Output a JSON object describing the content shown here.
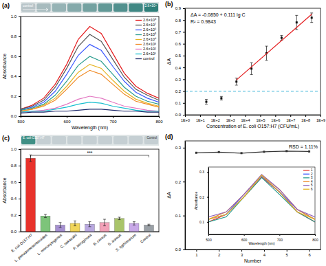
{
  "chart_data": [
    {
      "type": "line",
      "title": "(a)",
      "x_label": "Wavelength (nm)",
      "y_label": "Absorbance",
      "annotations": [
        "control",
        "2.6×10⁸"
      ],
      "x": [
        500,
        525,
        550,
        575,
        600,
        625,
        650,
        675,
        700,
        725,
        750,
        775,
        800
      ],
      "xlim": [
        500,
        800
      ],
      "xticks": [
        500,
        600,
        700,
        800
      ],
      "ylim": [
        0,
        1
      ],
      "yticks": [
        {
          "value": 0,
          "label": "0.0"
        },
        0.2,
        0.4,
        0.6,
        0.8,
        {
          "value": 1,
          "label": "1.0"
        }
      ],
      "legend": "upper right",
      "series": [
        {
          "name": "2.6×10⁸",
          "color": "#e41a1c",
          "values": [
            0.07,
            0.11,
            0.18,
            0.32,
            0.52,
            0.77,
            0.9,
            0.83,
            0.63,
            0.43,
            0.3,
            0.23,
            0.18
          ]
        },
        {
          "name": "2.6×10⁷",
          "color": "#555555",
          "values": [
            0.07,
            0.1,
            0.16,
            0.29,
            0.48,
            0.7,
            0.82,
            0.75,
            0.57,
            0.39,
            0.27,
            0.21,
            0.16
          ]
        },
        {
          "name": "2.6×10⁶",
          "color": "#3d5afe",
          "values": [
            0.06,
            0.09,
            0.14,
            0.25,
            0.42,
            0.61,
            0.72,
            0.66,
            0.5,
            0.35,
            0.24,
            0.18,
            0.14
          ]
        },
        {
          "name": "2.6×10⁵",
          "color": "#2a9d8f",
          "values": [
            0.06,
            0.08,
            0.12,
            0.21,
            0.35,
            0.51,
            0.6,
            0.55,
            0.42,
            0.29,
            0.2,
            0.15,
            0.12
          ]
        },
        {
          "name": "2.6×10⁴",
          "color": "#e6b422",
          "values": [
            0.05,
            0.07,
            0.11,
            0.18,
            0.3,
            0.44,
            0.52,
            0.48,
            0.36,
            0.25,
            0.17,
            0.13,
            0.1
          ]
        },
        {
          "name": "2.6×10³",
          "color": "#f08a24",
          "values": [
            0.05,
            0.07,
            0.1,
            0.16,
            0.27,
            0.39,
            0.46,
            0.42,
            0.32,
            0.22,
            0.15,
            0.12,
            0.09
          ]
        },
        {
          "name": "2.6×10²",
          "color": "#e377c2",
          "values": [
            0.04,
            0.05,
            0.06,
            0.08,
            0.12,
            0.17,
            0.2,
            0.18,
            0.14,
            0.1,
            0.08,
            0.06,
            0.05
          ]
        },
        {
          "name": "2.6×10¹",
          "color": "#17becf",
          "values": [
            0.04,
            0.05,
            0.05,
            0.07,
            0.09,
            0.12,
            0.14,
            0.13,
            0.1,
            0.08,
            0.06,
            0.05,
            0.05
          ]
        },
        {
          "name": "control",
          "color": "#1f2a6b",
          "values": [
            0.03,
            0.04,
            0.04,
            0.05,
            0.05,
            0.06,
            0.07,
            0.07,
            0.06,
            0.05,
            0.05,
            0.04,
            0.04
          ]
        }
      ]
    },
    {
      "type": "scatter",
      "title": "(b)",
      "x_label": "Concentration of E. coli O157:H7 (CFU/mL)",
      "y_label": "ΔA",
      "annotations": [
        "ΔA = -0.0850 + 0.111 lg C",
        "R² = 0.9843"
      ],
      "log": "x",
      "xlim": [
        1,
        1000000000
      ],
      "xticks": [
        {
          "value": 1,
          "label": "1E+0"
        },
        {
          "value": 10,
          "label": "1E+1"
        },
        {
          "value": 100,
          "label": "1E+2"
        },
        {
          "value": 1000,
          "label": "1E+3"
        },
        {
          "value": 10000,
          "label": "1E+4"
        },
        {
          "value": 100000,
          "label": "1E+5"
        },
        {
          "value": 1000000,
          "label": "1E+6"
        },
        {
          "value": 10000000,
          "label": "1E+7"
        },
        {
          "value": 100000000,
          "label": "1E+8"
        },
        {
          "value": 1000000000,
          "label": "1E+9"
        }
      ],
      "ylim": [
        0,
        0.9
      ],
      "yticks": [
        {
          "value": 0,
          "label": "0.0"
        },
        0.1,
        0.2,
        0.3,
        0.4,
        0.5,
        0.6,
        0.7,
        0.8,
        0.9
      ],
      "series": [
        {
          "type": "scatter",
          "color": "#111111",
          "marker": "square",
          "x": [
            26,
            260,
            2600,
            26000,
            260000,
            2600000,
            26000000,
            260000000
          ],
          "values": [
            0.11,
            0.14,
            0.28,
            0.39,
            0.52,
            0.65,
            0.78,
            0.82
          ],
          "errors": [
            0.02,
            0.015,
            0.03,
            0.05,
            0.06,
            0.02,
            0.06,
            0.04
          ]
        },
        {
          "type": "line",
          "color": "#e41a1c",
          "line_style": "solid",
          "x": [
            2600,
            260000000
          ],
          "values": [
            0.294,
            0.849
          ]
        },
        {
          "type": "line",
          "color": "#5bc0de",
          "line_style": "dashed",
          "x": [
            1,
            1000000000
          ],
          "values": [
            0.2,
            0.2
          ]
        }
      ]
    },
    {
      "type": "bar",
      "title": "(c)",
      "y_label": "Absorbance",
      "annotations": [
        "E. coli O157:H7",
        "Control",
        "***"
      ],
      "categories": [
        "E. coli O157:H7",
        "L. pseudomesenteroides",
        "L. monocytogenes",
        "C. sakazakii",
        "P. aeruginosa",
        "B. cereus",
        "S. aureus",
        "S. typhimurium",
        "Control"
      ],
      "values": [
        0.89,
        0.19,
        0.08,
        0.1,
        0.09,
        0.11,
        0.16,
        0.1,
        0.08
      ],
      "errors": [
        0.04,
        0.02,
        0.03,
        0.03,
        0.03,
        0.04,
        0.015,
        0.02,
        0.01
      ],
      "colors": [
        "#e8322b",
        "#7dc47a",
        "#a58fd0",
        "#f0d55a",
        "#b9a8e0",
        "#f2a1b8",
        "#a9c46a",
        "#c8a8e8",
        "#9aa0a6"
      ],
      "ylim": [
        0,
        1
      ],
      "yticks": [
        {
          "value": 0,
          "label": "0.0"
        },
        0.2,
        0.4,
        0.6,
        0.8,
        {
          "value": 1,
          "label": "1.0"
        }
      ]
    },
    {
      "type": "line",
      "title": "(d)",
      "x_label": "Number",
      "y_label": "ΔA",
      "annotations": [
        "RSD = 1.11%"
      ],
      "x": [
        1,
        2,
        3,
        4,
        5,
        6
      ],
      "xlim": [
        0.5,
        6.5
      ],
      "xticks": [
        1,
        2,
        3,
        4,
        5,
        6
      ],
      "ylim": [
        0,
        0.32
      ],
      "yticks": [
        {
          "value": 0,
          "label": "0.0"
        },
        0.1,
        0.2,
        0.3
      ],
      "series": [
        {
          "color": "#333333",
          "marker": "square",
          "values": [
            0.285,
            0.287,
            0.284,
            0.288,
            0.29,
            0.289
          ]
        }
      ]
    },
    {
      "type": "line",
      "x_label": "Wavelength (nm)",
      "y_label": "Absorbance",
      "x": [
        500,
        550,
        600,
        650,
        700,
        750,
        800
      ],
      "xlim": [
        500,
        800
      ],
      "xticks": [
        500,
        600,
        700,
        800
      ],
      "ylim": [
        0.05,
        0.32
      ],
      "yticks": [
        0.1,
        0.2,
        0.3
      ],
      "legend": "upper right",
      "series": [
        {
          "name": "1",
          "color": "#e8302a",
          "values": [
            0.1,
            0.13,
            0.2,
            0.28,
            0.22,
            0.14,
            0.1
          ]
        },
        {
          "name": "2",
          "color": "#3d5afe",
          "values": [
            0.11,
            0.13,
            0.21,
            0.285,
            0.22,
            0.15,
            0.11
          ]
        },
        {
          "name": "3",
          "color": "#2a9d8f",
          "values": [
            0.1,
            0.12,
            0.2,
            0.278,
            0.21,
            0.14,
            0.1
          ]
        },
        {
          "name": "4",
          "color": "#f08a24",
          "values": [
            0.11,
            0.14,
            0.21,
            0.288,
            0.23,
            0.15,
            0.11
          ]
        },
        {
          "name": "5",
          "color": "#9467bd",
          "values": [
            0.12,
            0.14,
            0.21,
            0.29,
            0.23,
            0.15,
            0.12
          ]
        },
        {
          "name": "6",
          "color": "#e6b422",
          "values": [
            0.11,
            0.13,
            0.2,
            0.287,
            0.22,
            0.14,
            0.11
          ]
        }
      ]
    }
  ]
}
